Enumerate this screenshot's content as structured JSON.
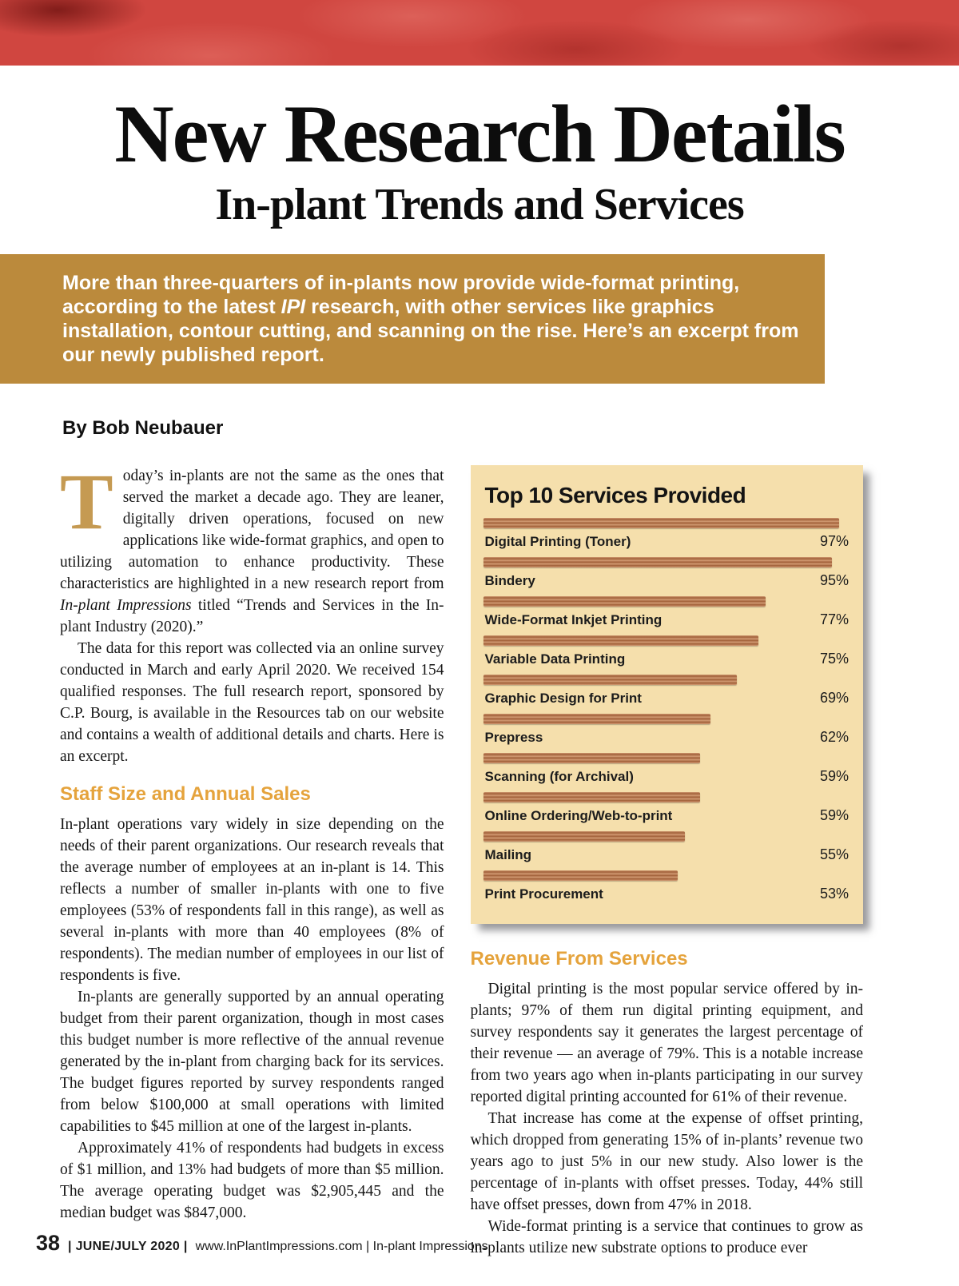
{
  "titles": {
    "line1": "New Research Details",
    "line2": "In-plant Trends and Services"
  },
  "intro": {
    "seg1": "More than three-quarters of in-plants now provide wide-format printing, according to the latest ",
    "italic": "IPI",
    "seg2": " research, with other services like graphics installation, contour cutting, and scanning on the rise. Here’s an excerpt from our newly published report."
  },
  "byline": "By Bob Neubauer",
  "article": {
    "p1_dropcap": "T",
    "p1_seg1": "oday’s in-plants are not the same as the ones that served the market a decade ago. They are leaner, digitally driven operations, focused on new applications like wide-format graphics, and open to utilizing automation to enhance productivity. These characteristics are highlighted in a new research report from ",
    "p1_italic": "In-plant Impressions",
    "p1_seg2": " titled “Trends and Services in the In-plant Industry (2020).”",
    "p2": "The data for this report was collected via an online survey conducted in March and early April 2020. We received 154 qualified responses. The full research report, sponsored by C.P. Bourg, is available in the Resources tab on our website and contains a wealth of additional details and charts. Here is an excerpt.",
    "staff_heading": "Staff Size and Annual Sales",
    "p3": "In-plant operations vary widely in size depending on the needs of their parent organizations. Our research reveals that the average number of employees at an in-plant is 14. This reflects a number of smaller in-plants with one to five employees (53% of respondents fall in this range), as well as several in-plants with more than 40 employees (8% of respondents). The median number of employees in our list of respondents is five.",
    "p4": "In-plants are generally supported by an annual operating budget from their parent organization, though in most cases this budget number is more reflective of the annual revenue generated by the in-plant from charging back for its services. The budget figures reported by survey respondents ranged from below $100,000 at small operations with limited capabilities to $45 million at one of the largest in-plants.",
    "p5": "Approximately 41% of respondents had budgets in excess of $1 million, and 13% had budgets of more than $5 million. The average operating budget was $2,905,445 and the median budget was $847,000.",
    "revenue_heading": "Revenue From Services",
    "p6": "Digital printing is the most popular service offered by in-plants; 97% of them run digital printing equipment, and survey respondents say it generates the largest percentage of their revenue — an average of 79%. This is a notable increase from two years ago when in-plants participating in our survey reported digital printing accounted for 61% of their revenue.",
    "p7": "That increase has come at the expense of offset printing, which dropped from generating 15% of in-plants’ revenue two years ago to just 5% in our new study. Also lower is the percentage of in-plants with offset presses. Today, 44% still have offset presses, down from 47% in 2018.",
    "p8": "Wide-format printing is a service that continues to grow as in-plants utilize new substrate options to produce ever"
  },
  "chart_data": {
    "type": "bar",
    "orientation": "horizontal",
    "title": "Top 10 Services Provided",
    "categories": [
      "Digital Printing (Toner)",
      "Bindery",
      "Wide-Format Inkjet Printing",
      "Variable Data Printing",
      "Graphic Design for Print",
      "Prepress",
      "Scanning (for Archival)",
      "Online Ordering/Web-to-print",
      "Mailing",
      "Print Procurement"
    ],
    "values": [
      97,
      95,
      77,
      75,
      69,
      62,
      59,
      59,
      55,
      53
    ],
    "value_labels": [
      "97%",
      "95%",
      "77%",
      "75%",
      "69%",
      "62%",
      "59%",
      "59%",
      "55%",
      "53%"
    ],
    "xlim": [
      0,
      100
    ],
    "bar_color": "#a05f38",
    "panel_color": "#f5dfac"
  },
  "footer": {
    "page_number": "38",
    "issue": "| JUNE/JULY 2020 |",
    "site": "www.InPlantImpressions.com | In-plant Impressions"
  },
  "colors": {
    "banner_red": "#d04640",
    "intro_gold": "#bb8a3c",
    "heading_orange": "#e5a33c",
    "dropcap_tan": "#c59a52"
  }
}
